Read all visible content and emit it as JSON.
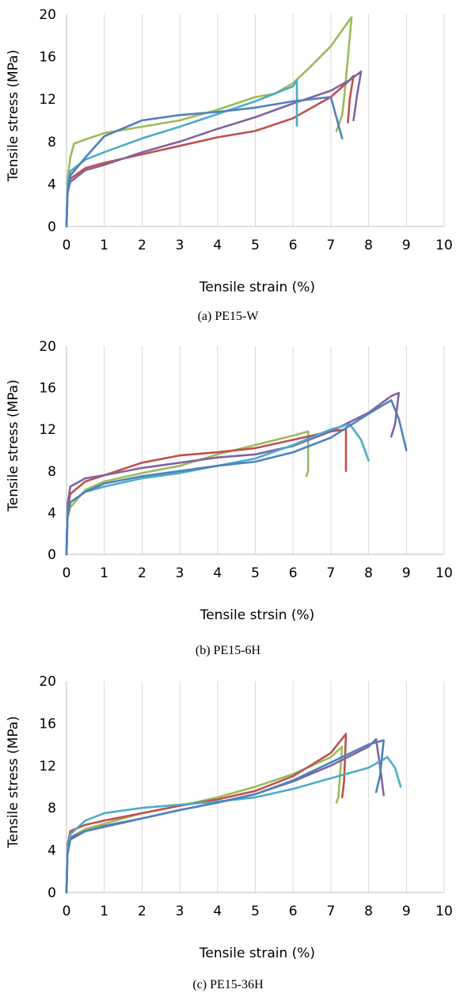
{
  "chart_data": [
    {
      "type": "line",
      "caption": "(a)  PE15-W",
      "xlabel": "Tensile strain (%)",
      "ylabel": "Tensile stress (MPa)",
      "xlim": [
        0,
        10
      ],
      "ylim": [
        0,
        20
      ],
      "xticks": [
        0,
        1,
        2,
        3,
        4,
        5,
        6,
        7,
        8,
        9,
        10
      ],
      "yticks": [
        0,
        4,
        8,
        12,
        16,
        20
      ],
      "grid": "vertical",
      "legend": "none",
      "series": [
        {
          "color": "#9bbb59",
          "points": [
            [
              0,
              0
            ],
            [
              0.03,
              4.5
            ],
            [
              0.1,
              6.5
            ],
            [
              0.2,
              7.8
            ],
            [
              0.5,
              8.2
            ],
            [
              1,
              8.8
            ],
            [
              2,
              9.4
            ],
            [
              3,
              10.0
            ],
            [
              4,
              11.0
            ],
            [
              5,
              12.2
            ],
            [
              5.5,
              12.5
            ],
            [
              6,
              13.5
            ],
            [
              6.5,
              15.2
            ],
            [
              7,
              17.0
            ],
            [
              7.5,
              19.5
            ],
            [
              7.55,
              19.7
            ],
            [
              7.35,
              12.0
            ],
            [
              7.3,
              10.5
            ],
            [
              7.15,
              9.0
            ]
          ]
        },
        {
          "color": "#c0504d",
          "points": [
            [
              0,
              0
            ],
            [
              0.03,
              3.5
            ],
            [
              0.1,
              4.5
            ],
            [
              0.5,
              5.5
            ],
            [
              1,
              6.0
            ],
            [
              2,
              6.8
            ],
            [
              3,
              7.6
            ],
            [
              4,
              8.4
            ],
            [
              5,
              9.0
            ],
            [
              6,
              10.2
            ],
            [
              7,
              12.2
            ],
            [
              7.5,
              13.8
            ],
            [
              7.6,
              14.2
            ],
            [
              7.5,
              12.0
            ],
            [
              7.45,
              9.8
            ]
          ]
        },
        {
          "color": "#8064a2",
          "points": [
            [
              0,
              0
            ],
            [
              0.03,
              3.2
            ],
            [
              0.1,
              4.2
            ],
            [
              0.5,
              5.3
            ],
            [
              1,
              5.8
            ],
            [
              2,
              7.0
            ],
            [
              3,
              8.0
            ],
            [
              4,
              9.2
            ],
            [
              5,
              10.3
            ],
            [
              6,
              11.6
            ],
            [
              7,
              12.8
            ],
            [
              7.5,
              13.8
            ],
            [
              7.8,
              14.6
            ],
            [
              7.7,
              12.5
            ],
            [
              7.6,
              10.0
            ]
          ]
        },
        {
          "color": "#4bacc6",
          "points": [
            [
              0,
              0
            ],
            [
              0.03,
              4.0
            ],
            [
              0.1,
              5.2
            ],
            [
              0.5,
              6.3
            ],
            [
              1,
              7.0
            ],
            [
              2,
              8.3
            ],
            [
              3,
              9.4
            ],
            [
              4,
              10.6
            ],
            [
              5,
              11.8
            ],
            [
              5.5,
              12.5
            ],
            [
              6,
              13.2
            ],
            [
              6.1,
              13.8
            ],
            [
              6.1,
              9.5
            ]
          ]
        },
        {
          "color": "#4f81bd",
          "points": [
            [
              0,
              0
            ],
            [
              0.02,
              3.0
            ],
            [
              0.1,
              4.8
            ],
            [
              0.5,
              6.5
            ],
            [
              1,
              8.5
            ],
            [
              2,
              10.0
            ],
            [
              3,
              10.5
            ],
            [
              4,
              10.8
            ],
            [
              5,
              11.2
            ],
            [
              6,
              11.8
            ],
            [
              7,
              12.2
            ],
            [
              7.3,
              8.3
            ]
          ]
        }
      ]
    },
    {
      "type": "line",
      "caption": "(b)  PE15-6H",
      "xlabel": "Tensile strsin (%)",
      "ylabel": "Tensile stress (MPa)",
      "xlim": [
        0,
        10
      ],
      "ylim": [
        0,
        20
      ],
      "xticks": [
        0,
        1,
        2,
        3,
        4,
        5,
        6,
        7,
        8,
        9,
        10
      ],
      "yticks": [
        0,
        4,
        8,
        12,
        16,
        20
      ],
      "grid": "vertical",
      "legend": "none",
      "series": [
        {
          "color": "#9bbb59",
          "points": [
            [
              0,
              0
            ],
            [
              0.03,
              3.5
            ],
            [
              0.1,
              4.5
            ],
            [
              0.5,
              6.2
            ],
            [
              1,
              7.0
            ],
            [
              2,
              7.8
            ],
            [
              3,
              8.5
            ],
            [
              4,
              9.6
            ],
            [
              5,
              10.5
            ],
            [
              6,
              11.4
            ],
            [
              6.4,
              11.8
            ],
            [
              6.4,
              8.0
            ],
            [
              6.35,
              7.5
            ]
          ]
        },
        {
          "color": "#c0504d",
          "points": [
            [
              0,
              0
            ],
            [
              0.03,
              4.5
            ],
            [
              0.1,
              5.8
            ],
            [
              0.5,
              7.0
            ],
            [
              1,
              7.6
            ],
            [
              2,
              8.8
            ],
            [
              3,
              9.5
            ],
            [
              4,
              9.8
            ],
            [
              5,
              10.2
            ],
            [
              6,
              11.0
            ],
            [
              7,
              11.8
            ],
            [
              7.4,
              12.0
            ],
            [
              7.4,
              8.0
            ]
          ]
        },
        {
          "color": "#8064a2",
          "points": [
            [
              0,
              0
            ],
            [
              0.03,
              4.8
            ],
            [
              0.1,
              6.5
            ],
            [
              0.5,
              7.3
            ],
            [
              1,
              7.6
            ],
            [
              2,
              8.3
            ],
            [
              3,
              8.8
            ],
            [
              4,
              9.3
            ],
            [
              5,
              9.6
            ],
            [
              6,
              10.4
            ],
            [
              7,
              11.8
            ],
            [
              8,
              13.6
            ],
            [
              8.6,
              15.2
            ],
            [
              8.8,
              15.5
            ],
            [
              8.7,
              12.5
            ],
            [
              8.6,
              11.3
            ]
          ]
        },
        {
          "color": "#4bacc6",
          "points": [
            [
              0,
              0
            ],
            [
              0.03,
              3.8
            ],
            [
              0.1,
              5.0
            ],
            [
              0.5,
              6.0
            ],
            [
              1,
              6.5
            ],
            [
              2,
              7.3
            ],
            [
              3,
              7.8
            ],
            [
              4,
              8.5
            ],
            [
              5,
              9.2
            ],
            [
              6,
              10.5
            ],
            [
              7,
              12.0
            ],
            [
              7.5,
              12.5
            ],
            [
              7.8,
              11.0
            ],
            [
              8.0,
              9.0
            ]
          ]
        },
        {
          "color": "#4f81bd",
          "points": [
            [
              0,
              0
            ],
            [
              0.02,
              3.5
            ],
            [
              0.1,
              5.0
            ],
            [
              0.5,
              6.0
            ],
            [
              1,
              6.8
            ],
            [
              2,
              7.5
            ],
            [
              3,
              8.0
            ],
            [
              4,
              8.5
            ],
            [
              5,
              8.9
            ],
            [
              6,
              9.8
            ],
            [
              7,
              11.2
            ],
            [
              8,
              13.5
            ],
            [
              8.6,
              14.8
            ],
            [
              8.8,
              13.0
            ],
            [
              9.0,
              10.0
            ]
          ]
        }
      ]
    },
    {
      "type": "line",
      "caption": "(c)  PE15-36H",
      "xlabel": "Tensile strain (%)",
      "ylabel": "Tensile stress (MPa)",
      "xlim": [
        0,
        10
      ],
      "ylim": [
        0,
        20
      ],
      "xticks": [
        0,
        1,
        2,
        3,
        4,
        5,
        6,
        7,
        8,
        9,
        10
      ],
      "yticks": [
        0,
        4,
        8,
        12,
        16,
        20
      ],
      "grid": "vertical",
      "legend": "none",
      "series": [
        {
          "color": "#9bbb59",
          "points": [
            [
              0,
              0
            ],
            [
              0.03,
              4.0
            ],
            [
              0.1,
              5.2
            ],
            [
              0.5,
              6.0
            ],
            [
              1,
              6.5
            ],
            [
              2,
              7.5
            ],
            [
              3,
              8.2
            ],
            [
              4,
              9.0
            ],
            [
              5,
              10.0
            ],
            [
              6,
              11.2
            ],
            [
              7,
              12.8
            ],
            [
              7.3,
              13.8
            ],
            [
              7.2,
              9.0
            ],
            [
              7.15,
              8.5
            ]
          ]
        },
        {
          "color": "#c0504d",
          "points": [
            [
              0,
              0
            ],
            [
              0.03,
              4.5
            ],
            [
              0.1,
              5.8
            ],
            [
              0.5,
              6.4
            ],
            [
              1,
              6.8
            ],
            [
              2,
              7.5
            ],
            [
              3,
              8.2
            ],
            [
              4,
              8.8
            ],
            [
              5,
              9.6
            ],
            [
              6,
              11.0
            ],
            [
              7,
              13.2
            ],
            [
              7.4,
              15.0
            ],
            [
              7.35,
              10.5
            ],
            [
              7.3,
              9.0
            ]
          ]
        },
        {
          "color": "#8064a2",
          "points": [
            [
              0,
              0
            ],
            [
              0.03,
              4.0
            ],
            [
              0.1,
              5.2
            ],
            [
              0.5,
              5.8
            ],
            [
              1,
              6.2
            ],
            [
              2,
              7.0
            ],
            [
              3,
              7.8
            ],
            [
              4,
              8.5
            ],
            [
              5,
              9.3
            ],
            [
              6,
              10.5
            ],
            [
              7,
              12.0
            ],
            [
              8,
              13.8
            ],
            [
              8.2,
              14.5
            ],
            [
              8.3,
              12.0
            ],
            [
              8.4,
              9.2
            ]
          ]
        },
        {
          "color": "#4bacc6",
          "points": [
            [
              0,
              0
            ],
            [
              0.03,
              4.2
            ],
            [
              0.1,
              5.5
            ],
            [
              0.5,
              6.8
            ],
            [
              1,
              7.5
            ],
            [
              2,
              8.0
            ],
            [
              3,
              8.3
            ],
            [
              4,
              8.6
            ],
            [
              5,
              9.0
            ],
            [
              6,
              9.8
            ],
            [
              7,
              10.8
            ],
            [
              8,
              11.8
            ],
            [
              8.5,
              12.8
            ],
            [
              8.7,
              11.8
            ],
            [
              8.85,
              10.0
            ]
          ]
        },
        {
          "color": "#4f81bd",
          "points": [
            [
              0,
              0
            ],
            [
              0.02,
              3.5
            ],
            [
              0.1,
              5.0
            ],
            [
              0.5,
              5.8
            ],
            [
              1,
              6.3
            ],
            [
              2,
              7.0
            ],
            [
              3,
              7.8
            ],
            [
              4,
              8.5
            ],
            [
              5,
              9.3
            ],
            [
              6,
              10.6
            ],
            [
              7,
              12.3
            ],
            [
              8,
              14.0
            ],
            [
              8.4,
              14.4
            ],
            [
              8.3,
              11.0
            ],
            [
              8.2,
              9.5
            ]
          ]
        }
      ]
    }
  ]
}
